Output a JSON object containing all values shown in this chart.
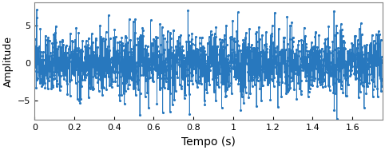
{
  "xlabel": "Tempo (s)",
  "ylabel": "Amplitude",
  "xlim": [
    0,
    1.75
  ],
  "ylim": [
    -7.5,
    8.0
  ],
  "yticks": [
    -5,
    0,
    5
  ],
  "xticks": [
    0,
    0.2,
    0.4,
    0.6,
    0.8,
    1.0,
    1.2,
    1.4,
    1.6
  ],
  "xticklabels": [
    "0",
    "0.2",
    "0.4",
    "0.6",
    "0.8",
    "1",
    "1.2",
    "1.4",
    "1.6"
  ],
  "line_color": "#2878BE",
  "fs": 2000,
  "duration": 1.75,
  "seed": 12345,
  "marker": ".",
  "markersize": 2.5,
  "linewidth": 0.6,
  "figsize": [
    4.82,
    1.88
  ],
  "dpi": 100,
  "amplitude_scale": 6.5,
  "xlabel_fontsize": 10,
  "ylabel_fontsize": 9,
  "tick_fontsize": 8
}
